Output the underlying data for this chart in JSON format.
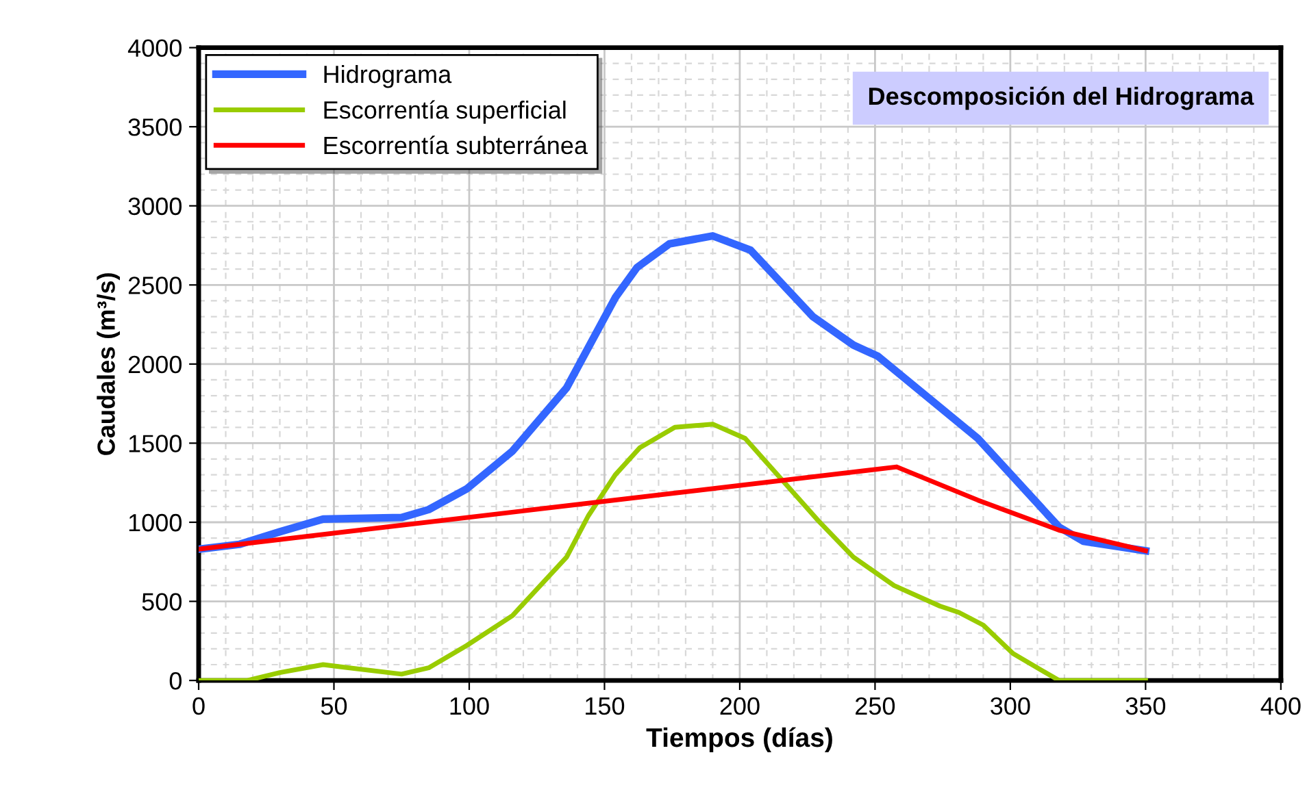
{
  "chart_data": {
    "type": "line",
    "title": "Descomposición del Hidrograma",
    "xlabel": "Tiempos (días)",
    "ylabel": "Caudales (m³/s)",
    "xlim": [
      0,
      400
    ],
    "xticks": [
      0,
      50,
      100,
      150,
      200,
      250,
      300,
      350,
      400
    ],
    "ylim": [
      0,
      4000
    ],
    "yticks": [
      0,
      500,
      1000,
      1500,
      2000,
      2500,
      3000,
      3500,
      4000
    ],
    "grid": true,
    "legend": "top left",
    "marker": "none",
    "line_style": "solid",
    "series": [
      {
        "name": "Hidrograma",
        "color": "#3366ff",
        "x": [
          0,
          15,
          30,
          46,
          75,
          85,
          99,
          116,
          136,
          154,
          162,
          174,
          190,
          204,
          227,
          242,
          251,
          288,
          318,
          327,
          350
        ],
        "values": [
          830,
          860,
          940,
          1020,
          1030,
          1080,
          1210,
          1450,
          1850,
          2420,
          2610,
          2760,
          2810,
          2720,
          2300,
          2120,
          2050,
          1530,
          970,
          880,
          820
        ]
      },
      {
        "name": "Escorrentía superficial",
        "color": "#99cc00",
        "x": [
          0,
          18,
          30,
          46,
          75,
          85,
          99,
          116,
          136,
          144,
          154,
          163,
          176,
          190,
          202,
          229,
          242,
          257,
          274,
          281,
          290,
          301,
          318,
          350
        ],
        "values": [
          0,
          0,
          50,
          100,
          40,
          80,
          220,
          410,
          780,
          1040,
          1300,
          1470,
          1600,
          1620,
          1530,
          1010,
          780,
          600,
          470,
          430,
          350,
          170,
          0,
          0
        ]
      },
      {
        "name": "Escorrentía subterránea",
        "color": "#ff0000",
        "x": [
          0,
          258,
          288,
          318,
          350
        ],
        "values": [
          830,
          1350,
          1140,
          950,
          820
        ]
      }
    ]
  }
}
